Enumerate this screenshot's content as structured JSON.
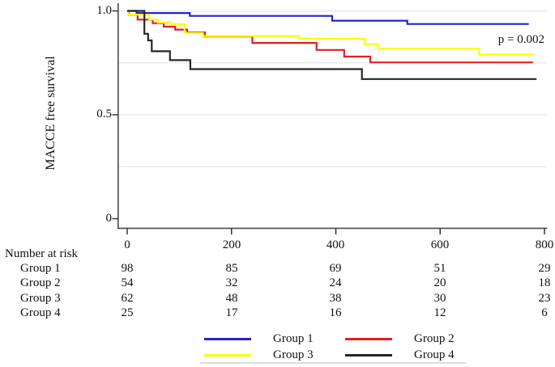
{
  "chart_data": {
    "type": "line",
    "subtype": "kaplan-meier-step",
    "title": "",
    "xlabel": "",
    "ylabel": "MACCE free survival",
    "annotation": "p = 0.002",
    "xlim": [
      0,
      855
    ],
    "ylim": [
      0,
      1.0
    ],
    "grid_on": true,
    "grid_values": [
      0.25,
      0.5,
      0.75,
      1.0
    ],
    "grid_color": "#e3eaea",
    "axis_color": "#4a4a4a",
    "x_ticks": [
      {
        "v": 0,
        "label": "0"
      },
      {
        "v": 200,
        "label": "200"
      },
      {
        "v": 400,
        "label": "400"
      },
      {
        "v": 600,
        "label": "600"
      },
      {
        "v": 800,
        "label": "800"
      }
    ],
    "y_ticks": [
      {
        "v": 1.0,
        "label": "1.0"
      },
      {
        "v": 0.5,
        "label": "0.5"
      },
      {
        "v": 0.0,
        "label": "0"
      }
    ],
    "series": [
      {
        "name": "Group 1",
        "color": "#2424cf",
        "t_end": 770,
        "points": [
          [
            0,
            1.0
          ],
          [
            18,
            0.99
          ],
          [
            120,
            0.976
          ],
          [
            393,
            0.953
          ],
          [
            537,
            0.937
          ]
        ]
      },
      {
        "name": "Group 2",
        "color": "#de2121",
        "t_end": 778,
        "points": [
          [
            0,
            1.0
          ],
          [
            3,
            0.981
          ],
          [
            20,
            0.958
          ],
          [
            49,
            0.941
          ],
          [
            70,
            0.924
          ],
          [
            92,
            0.91
          ],
          [
            115,
            0.897
          ],
          [
            149,
            0.877
          ],
          [
            240,
            0.846
          ],
          [
            363,
            0.812
          ],
          [
            416,
            0.78
          ],
          [
            466,
            0.752
          ]
        ]
      },
      {
        "name": "Group 3",
        "color": "#fdfd00",
        "t_end": 780,
        "points": [
          [
            0,
            1.0
          ],
          [
            2,
            0.982
          ],
          [
            42,
            0.959
          ],
          [
            59,
            0.944
          ],
          [
            85,
            0.936
          ],
          [
            110,
            0.894
          ],
          [
            145,
            0.879
          ],
          [
            330,
            0.866
          ],
          [
            455,
            0.84
          ],
          [
            481,
            0.818
          ],
          [
            675,
            0.79
          ]
        ]
      },
      {
        "name": "Group 4",
        "color": "#262626",
        "t_end": 785,
        "points": [
          [
            0,
            1.0
          ],
          [
            33,
            0.89
          ],
          [
            40,
            0.858
          ],
          [
            47,
            0.806
          ],
          [
            82,
            0.763
          ],
          [
            121,
            0.72
          ],
          [
            450,
            0.672
          ]
        ]
      }
    ]
  },
  "risk_table": {
    "header": "Number at risk",
    "columns": [
      "0",
      "200",
      "400",
      "600",
      "800"
    ],
    "rows": [
      {
        "label": "Group 1",
        "counts": [
          "98",
          "85",
          "69",
          "51",
          "29"
        ]
      },
      {
        "label": "Group 2",
        "counts": [
          "54",
          "32",
          "24",
          "20",
          "18"
        ]
      },
      {
        "label": "Group 3",
        "counts": [
          "62",
          "48",
          "38",
          "30",
          "23"
        ]
      },
      {
        "label": "Group 4",
        "counts": [
          "25",
          "17",
          "16",
          "12",
          "6"
        ]
      }
    ]
  },
  "legend": {
    "items": [
      {
        "label": "Group 1",
        "color": "#2424cf"
      },
      {
        "label": "Group 2",
        "color": "#de2121"
      },
      {
        "label": "Group 3",
        "color": "#fdfd00"
      },
      {
        "label": "Group 4",
        "color": "#262626"
      }
    ]
  }
}
